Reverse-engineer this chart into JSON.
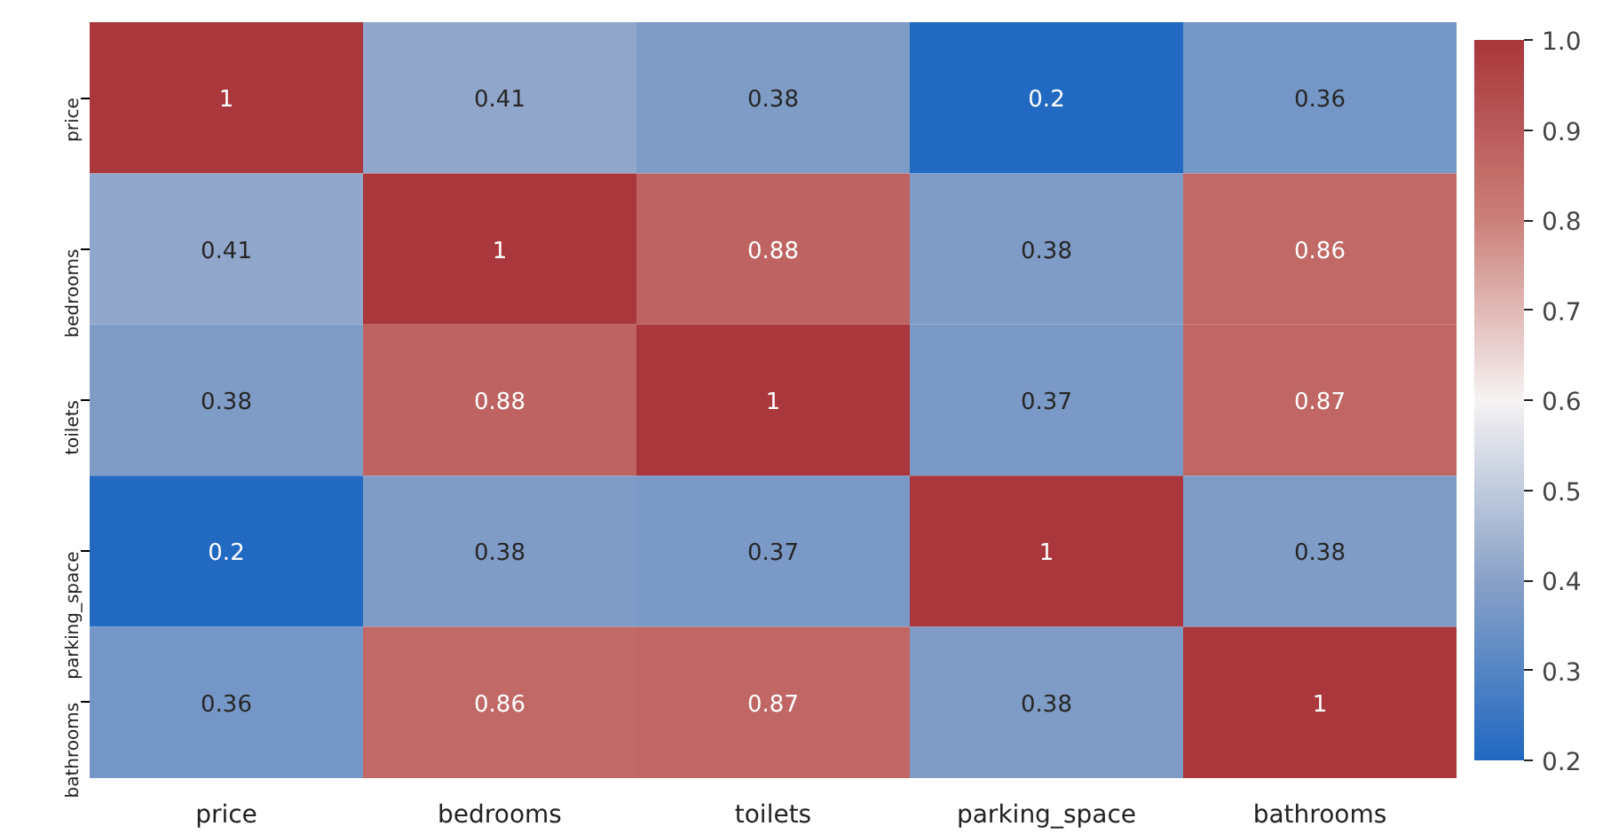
{
  "chart_data": {
    "type": "heatmap",
    "categories": [
      "price",
      "bedrooms",
      "toilets",
      "parking_space",
      "bathrooms"
    ],
    "y_categories": [
      "price",
      "bedrooms",
      "toilets",
      "parking_space",
      "bathrooms"
    ],
    "cells": [
      [
        1,
        0.41,
        0.38,
        0.2,
        0.36
      ],
      [
        0.41,
        1,
        0.88,
        0.38,
        0.86
      ],
      [
        0.38,
        0.88,
        1,
        0.37,
        0.87
      ],
      [
        0.2,
        0.38,
        0.37,
        1,
        0.38
      ],
      [
        0.36,
        0.86,
        0.87,
        0.38,
        1
      ]
    ],
    "clim": [
      0.2,
      1.0
    ],
    "cticks": [
      {
        "value": 0.2,
        "label": "0.2"
      },
      {
        "value": 0.3,
        "label": "0.3"
      },
      {
        "value": 0.4,
        "label": "0.4"
      },
      {
        "value": 0.5,
        "label": "0.5"
      },
      {
        "value": 0.6,
        "label": "0.6"
      },
      {
        "value": 0.7,
        "label": "0.7"
      },
      {
        "value": 0.8,
        "label": "0.8"
      },
      {
        "value": 0.9,
        "label": "0.9"
      },
      {
        "value": 1.0,
        "label": "1.0"
      }
    ],
    "data_labels": true
  }
}
